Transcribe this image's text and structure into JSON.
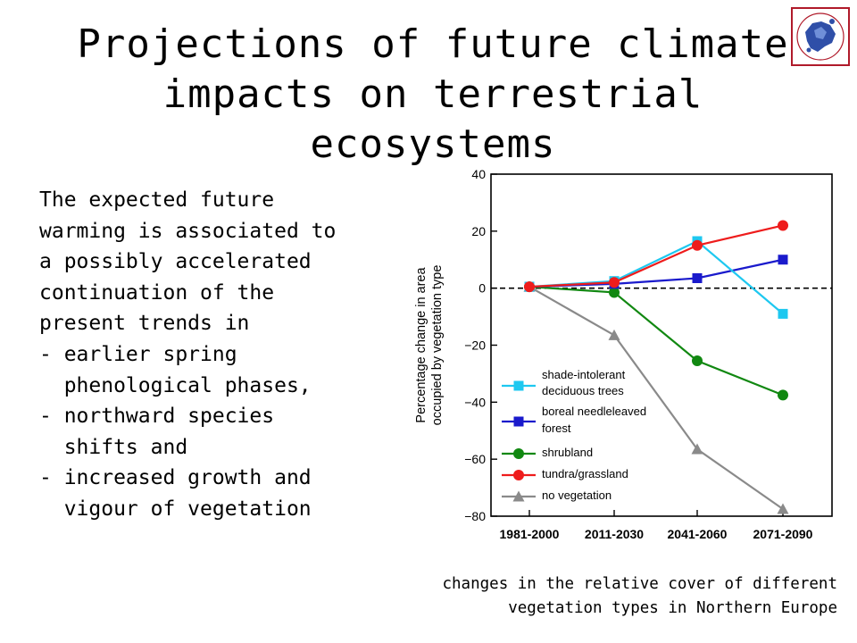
{
  "slide": {
    "title_lines": [
      "Projections of future climate",
      "impacts on terrestrial ecosystems"
    ],
    "body_lines": [
      "The expected future",
      "warming is associated to",
      "a possibly accelerated",
      "continuation of the",
      "present trends in",
      "- earlier spring",
      "  phenological phases,",
      "- northward species",
      "  shifts and",
      "- increased growth and",
      "  vigour of vegetation"
    ],
    "caption_lines": [
      "changes in the relative cover of different",
      "vegetation types in Northern Europe"
    ],
    "logo_icon": "europe-map-logo-icon"
  },
  "chart_data": {
    "type": "line",
    "title": "",
    "xlabel": "",
    "ylabel": "Percentage change in area occupied by vegetation type",
    "ylabel_lines": [
      "Percentage change in area",
      "occupied by vegetation type"
    ],
    "categories": [
      "1981-2000",
      "2011-2030",
      "2041-2060",
      "2071-2090"
    ],
    "ylim": [
      -80,
      40
    ],
    "yticks": [
      40,
      20,
      0,
      -20,
      -40,
      -60,
      -80
    ],
    "ytick_labels": [
      "40",
      "20",
      "0",
      "−20",
      "−40",
      "−60",
      "−80"
    ],
    "reference_line": {
      "y": 0,
      "style": "dashed"
    },
    "grid": false,
    "legend_position": "lower-left",
    "series": [
      {
        "name": "shade-intolerant deciduous trees",
        "legend_lines": [
          "shade-intolerant",
          "deciduous trees"
        ],
        "marker": "square",
        "color": "#1EC8F0",
        "values": [
          0.5,
          2.5,
          16.5,
          -9
        ]
      },
      {
        "name": "boreal needleleaved forest",
        "legend_lines": [
          "boreal needleleaved",
          "forest"
        ],
        "marker": "square",
        "color": "#1A1ACC",
        "values": [
          0.5,
          1.5,
          3.5,
          10
        ]
      },
      {
        "name": "shrubland",
        "legend_lines": [
          "shrubland"
        ],
        "marker": "circle",
        "color": "#118811",
        "values": [
          0.5,
          -1.5,
          -25.5,
          -37.5
        ]
      },
      {
        "name": "tundra/grassland",
        "legend_lines": [
          "tundra/grassland"
        ],
        "marker": "circle",
        "color": "#EE1C1C",
        "values": [
          0.5,
          2,
          15,
          22
        ]
      },
      {
        "name": "no vegetation",
        "legend_lines": [
          "no vegetation"
        ],
        "marker": "triangle",
        "color": "#8A8A8A",
        "values": [
          0.5,
          -16.5,
          -56.5,
          -77.5
        ]
      }
    ]
  }
}
